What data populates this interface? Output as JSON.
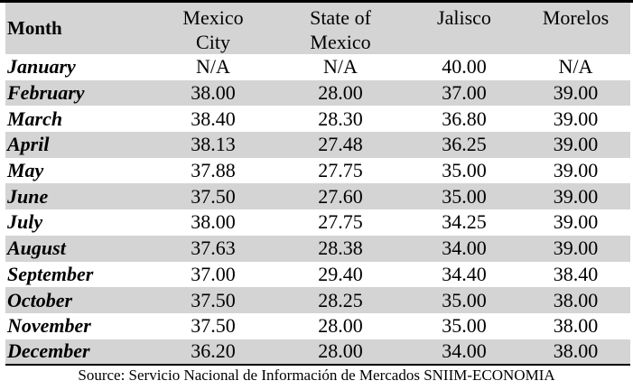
{
  "table": {
    "headers": {
      "month": "Month",
      "col1_line1": "Mexico",
      "col1_line2": "City",
      "col2_line1": "State of",
      "col2_line2": "Mexico",
      "col3": "Jalisco",
      "col4": "Morelos"
    },
    "rows": [
      {
        "month": "January",
        "mexico_city": "N/A",
        "state_of_mexico": "N/A",
        "jalisco": "40.00",
        "morelos": "N/A"
      },
      {
        "month": "February",
        "mexico_city": "38.00",
        "state_of_mexico": "28.00",
        "jalisco": "37.00",
        "morelos": "39.00"
      },
      {
        "month": "March",
        "mexico_city": "38.40",
        "state_of_mexico": "28.30",
        "jalisco": "36.80",
        "morelos": "39.00"
      },
      {
        "month": "April",
        "mexico_city": "38.13",
        "state_of_mexico": "27.48",
        "jalisco": "36.25",
        "morelos": "39.00"
      },
      {
        "month": "May",
        "mexico_city": "37.88",
        "state_of_mexico": "27.75",
        "jalisco": "35.00",
        "morelos": "39.00"
      },
      {
        "month": "June",
        "mexico_city": "37.50",
        "state_of_mexico": "27.60",
        "jalisco": "35.00",
        "morelos": "39.00"
      },
      {
        "month": "July",
        "mexico_city": "38.00",
        "state_of_mexico": "27.75",
        "jalisco": "34.25",
        "morelos": "39.00"
      },
      {
        "month": "August",
        "mexico_city": "37.63",
        "state_of_mexico": "28.38",
        "jalisco": "34.00",
        "morelos": "39.00"
      },
      {
        "month": "September",
        "mexico_city": "37.00",
        "state_of_mexico": "29.40",
        "jalisco": "34.40",
        "morelos": "38.40"
      },
      {
        "month": "October",
        "mexico_city": "37.50",
        "state_of_mexico": "28.25",
        "jalisco": "35.00",
        "morelos": "38.00"
      },
      {
        "month": "November",
        "mexico_city": "37.50",
        "state_of_mexico": "28.00",
        "jalisco": "35.00",
        "morelos": "38.00"
      },
      {
        "month": "December",
        "mexico_city": "36.20",
        "state_of_mexico": "28.00",
        "jalisco": "34.00",
        "morelos": "38.00"
      }
    ]
  },
  "source": "Source: Servicio Nacional de Información de Mercados SNIIM-ECONOMIA",
  "colors": {
    "row_shade": "#d4d4d4",
    "text": "#000000"
  }
}
